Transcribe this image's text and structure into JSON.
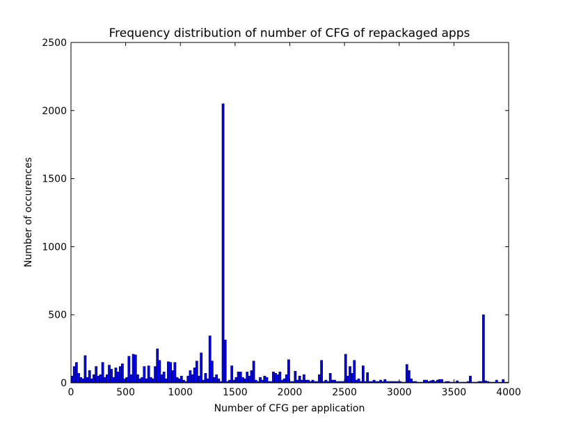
{
  "chart_data": {
    "type": "histogram",
    "title": "Frequency distribution of number of CFG of repackaged apps",
    "xlabel": "Number of CFG per application",
    "ylabel": "Number of occurences",
    "color": "#0000ff",
    "edgecolor": "#000000",
    "bins": [
      0,
      20,
      40,
      60,
      80,
      100,
      120,
      140,
      160,
      180,
      200,
      220,
      240,
      260,
      280,
      300,
      320,
      340,
      360,
      380,
      400,
      420,
      440,
      460,
      480,
      500,
      520,
      540,
      560,
      580,
      600,
      620,
      640,
      660,
      680,
      700,
      720,
      740,
      760,
      780,
      800,
      820,
      840,
      860,
      880,
      900,
      920,
      940,
      960,
      980,
      1000,
      1020,
      1040,
      1060,
      1080,
      1100,
      1120,
      1140,
      1160,
      1180,
      1200,
      1220,
      1240,
      1260,
      1280,
      1300,
      1320,
      1340,
      1360,
      1380,
      1400,
      1420,
      1440,
      1460,
      1480,
      1500,
      1520,
      1540,
      1560,
      1580,
      1600,
      1620,
      1640,
      1660,
      1680,
      1700,
      1720,
      1740,
      1760,
      1780,
      1800,
      1820,
      1840,
      1860,
      1880,
      1900,
      1920,
      1940,
      1960,
      1980,
      2000,
      2020,
      2040,
      2060,
      2080,
      2100,
      2120,
      2140,
      2160,
      2180,
      2200,
      2220,
      2240,
      2260,
      2280,
      2300,
      2320,
      2340,
      2360,
      2380,
      2400,
      2420,
      2440,
      2460,
      2480,
      2500,
      2520,
      2540,
      2560,
      2580,
      2600,
      2620,
      2640,
      2660,
      2680,
      2700,
      2720,
      2740,
      2760,
      2780,
      2800,
      2820,
      2840,
      2860,
      2880,
      2900,
      2920,
      2940,
      2960,
      2980,
      3000,
      3020,
      3040,
      3060,
      3080,
      3100,
      3120,
      3140,
      3160,
      3180,
      3200,
      3220,
      3240,
      3260,
      3280,
      3300,
      3320,
      3340,
      3360,
      3380,
      3400,
      3420,
      3440,
      3460,
      3480,
      3500,
      3520,
      3540,
      3560,
      3580,
      3600,
      3620,
      3640,
      3660,
      3680,
      3700,
      3720,
      3740,
      3760,
      3780,
      3800,
      3820,
      3840,
      3860,
      3880,
      3900,
      3920,
      3940,
      3960,
      3980,
      4000
    ],
    "values": [
      50,
      120,
      150,
      70,
      40,
      30,
      200,
      40,
      90,
      30,
      60,
      120,
      50,
      60,
      150,
      40,
      60,
      130,
      100,
      40,
      110,
      80,
      120,
      140,
      30,
      40,
      195,
      60,
      210,
      205,
      60,
      30,
      40,
      120,
      30,
      125,
      40,
      30,
      120,
      250,
      165,
      60,
      80,
      30,
      155,
      150,
      90,
      150,
      40,
      30,
      50,
      20,
      10,
      50,
      90,
      60,
      110,
      160,
      50,
      220,
      20,
      70,
      30,
      345,
      160,
      40,
      60,
      30,
      10,
      2050,
      315,
      10,
      20,
      125,
      20,
      40,
      80,
      80,
      40,
      30,
      80,
      50,
      90,
      160,
      20,
      10,
      40,
      20,
      50,
      40,
      10,
      10,
      80,
      70,
      60,
      80,
      20,
      30,
      60,
      170,
      10,
      10,
      85,
      20,
      50,
      20,
      60,
      20,
      20,
      10,
      20,
      10,
      10,
      60,
      165,
      10,
      20,
      10,
      70,
      20,
      20,
      10,
      10,
      10,
      10,
      210,
      50,
      120,
      70,
      165,
      20,
      30,
      10,
      125,
      10,
      75,
      10,
      10,
      20,
      10,
      10,
      20,
      10,
      25,
      10,
      10,
      10,
      10,
      10,
      10,
      10,
      5,
      5,
      135,
      90,
      30,
      10,
      10,
      5,
      5,
      5,
      20,
      20,
      10,
      15,
      20,
      10,
      20,
      25,
      25,
      5,
      10,
      10,
      5,
      5,
      5,
      15,
      5,
      5,
      5,
      5,
      10,
      50,
      5,
      5,
      5,
      10,
      10,
      500,
      15,
      10,
      5,
      5,
      5,
      20,
      5,
      5,
      25,
      5,
      5
    ],
    "xlim": [
      0,
      4000
    ],
    "xticks": [
      0,
      500,
      1000,
      1500,
      2000,
      2500,
      3000,
      3500,
      4000
    ],
    "ylim": [
      0,
      2500
    ],
    "yticks": [
      0,
      500,
      1000,
      1500,
      2000,
      2500
    ]
  }
}
